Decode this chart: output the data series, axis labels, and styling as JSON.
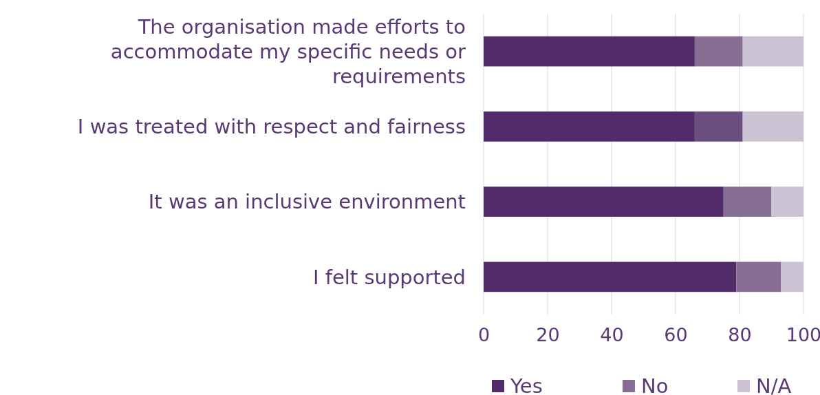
{
  "chart_data": {
    "type": "bar",
    "orientation": "horizontal",
    "stacked": true,
    "categories": [
      "The organisation made efforts to accommodate my specific needs or requirements",
      "I was treated with respect and fairness",
      "It was an inclusive environment",
      "I felt supported"
    ],
    "series": [
      {
        "name": "Yes",
        "color": "#522c6a",
        "values": [
          66,
          66,
          75,
          79
        ]
      },
      {
        "name": "No",
        "color": "#876e94",
        "colors": [
          "#876e94",
          "#6a4e80",
          "#876e94",
          "#876e94"
        ],
        "values": [
          15,
          15,
          15,
          14
        ]
      },
      {
        "name": "N/A",
        "color": "#cbc2d4",
        "values": [
          19,
          19,
          10,
          7
        ]
      }
    ],
    "xlim": [
      0,
      100
    ],
    "xticks": [
      0,
      20,
      40,
      60,
      80,
      100
    ],
    "grid": "x",
    "legend": "bottom"
  }
}
